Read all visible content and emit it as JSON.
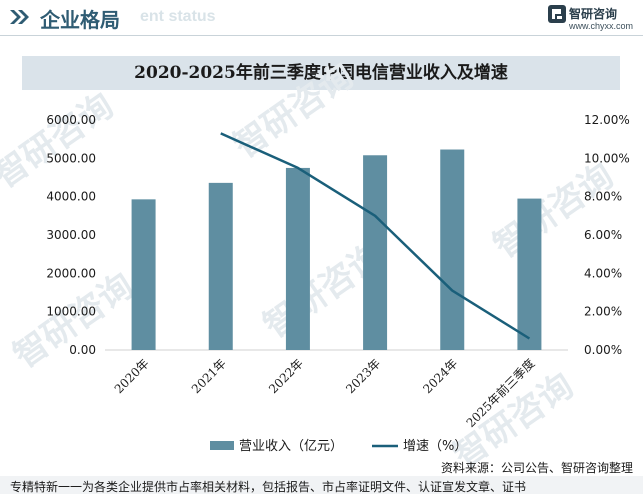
{
  "header": {
    "title": "企业格局",
    "ghost_text": "ent status"
  },
  "brand": {
    "name": "智研咨询",
    "url": "www.chyxx.com",
    "watermark": "智研咨询"
  },
  "chart_data": {
    "type": "bar+line",
    "title": "2020-2025年前三季度中国电信营业收入及增速",
    "categories": [
      "2020年",
      "2021年",
      "2022年",
      "2023年",
      "2024年",
      "2025年前三季度"
    ],
    "series": [
      {
        "name": "营业收入（亿元）",
        "type": "bar",
        "axis": "left",
        "values": [
          3930,
          4360,
          4750,
          5080,
          5230,
          3950
        ]
      },
      {
        "name": "增速（%）",
        "type": "line",
        "axis": "right",
        "values": [
          null,
          11.3,
          9.5,
          7.0,
          3.1,
          0.6
        ]
      }
    ],
    "left_axis": {
      "ylim": [
        0,
        6000
      ],
      "ticks": [
        0,
        1000,
        2000,
        3000,
        4000,
        5000,
        6000
      ],
      "tick_labels": [
        "0.00",
        "1000.00",
        "2000.00",
        "3000.00",
        "4000.00",
        "5000.00",
        "6000.00"
      ]
    },
    "right_axis": {
      "ylim": [
        0,
        12
      ],
      "ticks": [
        0,
        2,
        4,
        6,
        8,
        10,
        12
      ],
      "tick_labels": [
        "0.00%",
        "2.00%",
        "4.00%",
        "6.00%",
        "8.00%",
        "10.00%",
        "12.00%"
      ]
    },
    "grid": false,
    "legend_position": "bottom-center",
    "colors": {
      "bar": "#5f8ea1",
      "line": "#1a5f7a"
    }
  },
  "footer": {
    "source": "资料来源：公司公告、智研咨询整理",
    "tagline": "专精特新一一为各类企业提供市占率相关材料，包括报告、市占率证明文件、认证宣发文章、证书"
  }
}
